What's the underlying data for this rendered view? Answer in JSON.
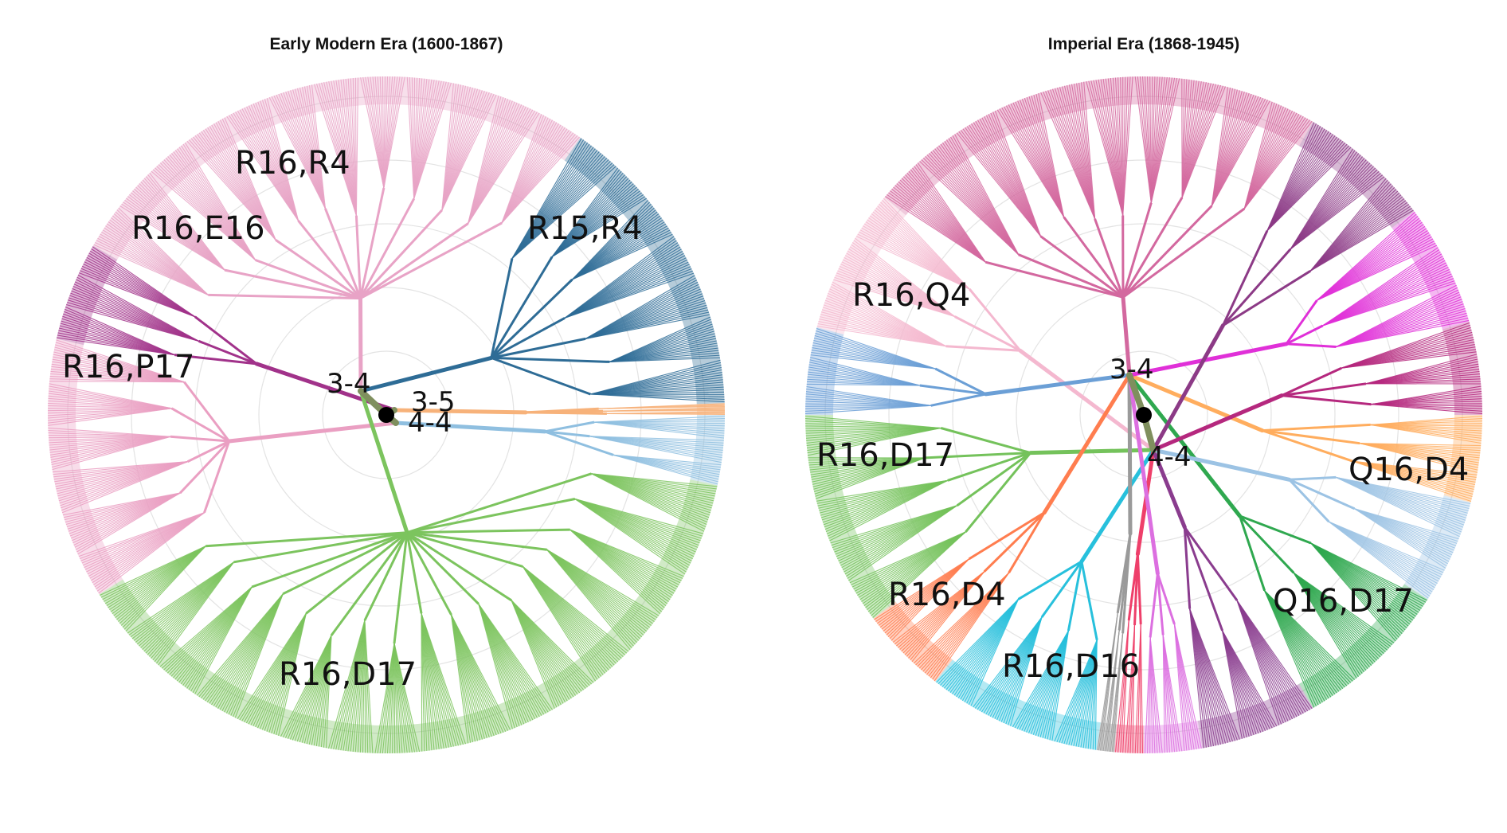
{
  "panels": [
    {
      "title": "Early Modern Era (1600-1867)",
      "root_moves": [
        "3-4",
        "3-5",
        "4-4"
      ],
      "clusters": [
        {
          "label": "R16,R4",
          "color": "#e8a3c6",
          "from_deg": 210,
          "to_deg": 305
        },
        {
          "label": "R16,E16",
          "color": "#a1328a",
          "from_deg": 193,
          "to_deg": 210
        },
        {
          "label": "R16,P17",
          "color": "#ea9fc2",
          "from_deg": 148,
          "to_deg": 193
        },
        {
          "label": "R15,R4",
          "color": "#2e6c96",
          "from_deg": 305,
          "to_deg": 358
        },
        {
          "label": "",
          "color": "#f7b27a",
          "from_deg": 358,
          "to_deg": 360
        },
        {
          "label": "",
          "color": "#8fbfe0",
          "from_deg": 0,
          "to_deg": 12
        },
        {
          "label": "R16,D17",
          "color": "#7cc45e",
          "from_deg": 12,
          "to_deg": 148
        }
      ]
    },
    {
      "title": "Imperial Era (1868-1945)",
      "root_moves": [
        "3-4",
        "4-4"
      ],
      "clusters": [
        {
          "label": "",
          "color": "#d3689f",
          "from_deg": 220,
          "to_deg": 300
        },
        {
          "label": "",
          "color": "#f4b8cf",
          "from_deg": 195,
          "to_deg": 220
        },
        {
          "label": "R16,Q4",
          "color": "#6b9fd6",
          "from_deg": 180,
          "to_deg": 195
        },
        {
          "label": "R16,D17",
          "color": "#74c25b",
          "from_deg": 143,
          "to_deg": 180
        },
        {
          "label": "R16,D4",
          "color": "#ff7d4f",
          "from_deg": 128,
          "to_deg": 143
        },
        {
          "label": "R16,D16",
          "color": "#27c0dc",
          "from_deg": 98,
          "to_deg": 128
        },
        {
          "label": "",
          "color": "#9a9a9a",
          "from_deg": 95,
          "to_deg": 98
        },
        {
          "label": "",
          "color": "#ee3f6a",
          "from_deg": 90,
          "to_deg": 95
        },
        {
          "label": "",
          "color": "#dc6fe0",
          "from_deg": 80,
          "to_deg": 90
        },
        {
          "label": "",
          "color": "#8a3c8e",
          "from_deg": 60,
          "to_deg": 80
        },
        {
          "label": "Q16,D17",
          "color": "#2fa84f",
          "from_deg": 33,
          "to_deg": 60
        },
        {
          "label": "",
          "color": "#9cc3e4",
          "from_deg": 15,
          "to_deg": 33
        },
        {
          "label": "Q16,D4",
          "color": "#ffad5e",
          "from_deg": 0,
          "to_deg": 15
        },
        {
          "label": "",
          "color": "#b5287e",
          "from_deg": 344,
          "to_deg": 360
        },
        {
          "label": "",
          "color": "#e030d8",
          "from_deg": 323,
          "to_deg": 344
        },
        {
          "label": "",
          "color": "#8c3a86",
          "from_deg": 300,
          "to_deg": 323
        }
      ]
    }
  ]
}
